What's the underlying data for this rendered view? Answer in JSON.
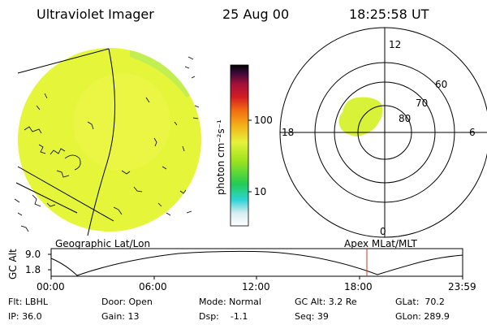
{
  "header": {
    "instrument": "Ultraviolet Imager",
    "date": "25 Aug 00",
    "time": "18:25:58 UT"
  },
  "colorbar": {
    "unit_label": "photon cm⁻²s⁻¹",
    "ticks": [
      "100",
      "10"
    ]
  },
  "polar_plot": {
    "mlt_labels": [
      "12",
      "18",
      "6",
      "0"
    ],
    "lat_labels": [
      "60",
      "70",
      "80"
    ]
  },
  "labels": {
    "left_caption": "Geographic Lat/Lon",
    "right_caption": "Apex MLat/MLT"
  },
  "altitude_plot": {
    "ylabel": "GC Alt",
    "yticks": [
      "9.0",
      "1.8"
    ],
    "xticks": [
      "00:00",
      "06:00",
      "12:00",
      "18:00",
      "23:59"
    ]
  },
  "info": {
    "row1": {
      "flt": "Flt: LBHL",
      "door": "Door: Open",
      "mode": "Mode: Normal",
      "gc_alt": "GC Alt: 3.2 Re",
      "glat": "GLat:  70.2"
    },
    "row2": {
      "ip": "IP: 36.0",
      "gain": "Gain: 13",
      "dsp": "Dsp:    -1.1",
      "seq": "Seq: 39",
      "glon": "GLon: 289.9"
    }
  },
  "colors": {
    "earth_fill": "#e4f53a",
    "aurora_fill": "#d8f23a",
    "grid_line": "#000000",
    "time_marker": "#e0301e"
  }
}
